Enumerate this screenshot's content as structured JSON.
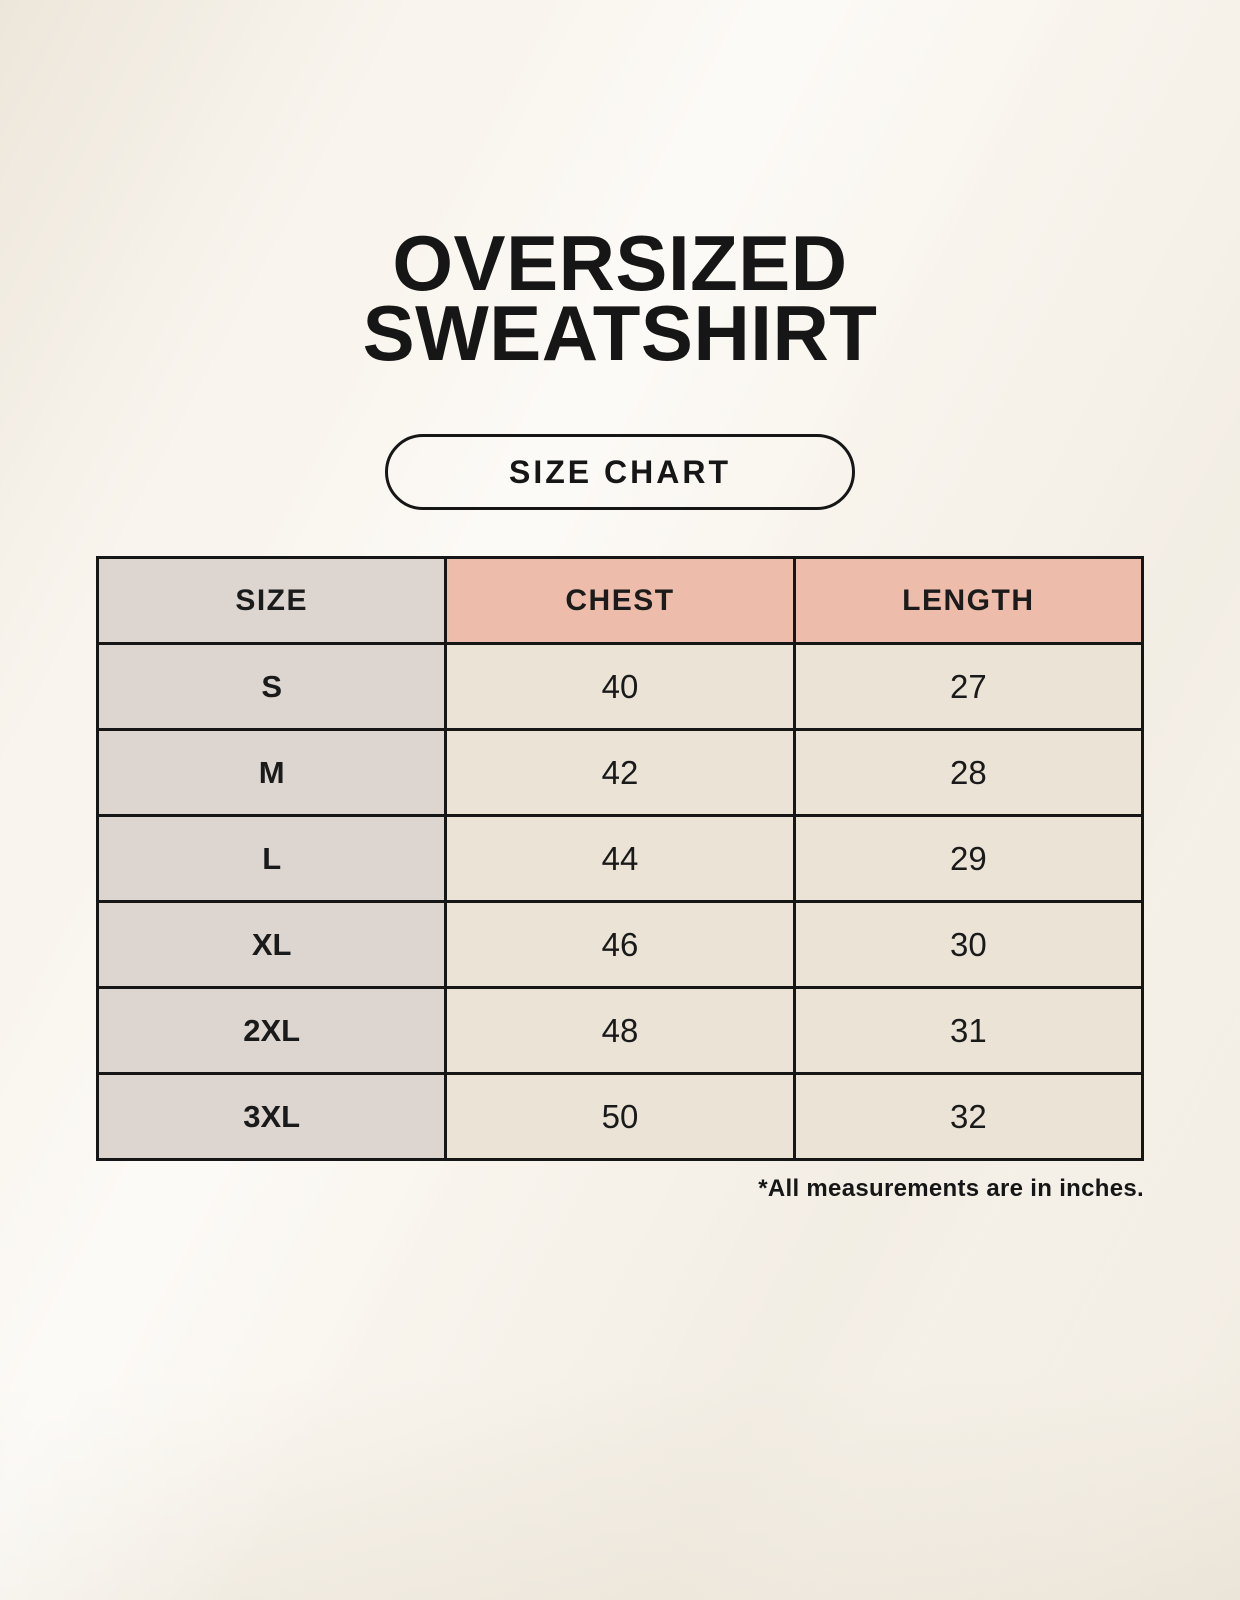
{
  "page": {
    "title_lines": [
      "OVERSIZED",
      "SWEATSHIRT"
    ],
    "badge_label": "SIZE CHART",
    "footnote": "*All measurements are in inches."
  },
  "chart_data": {
    "type": "table",
    "title": "OVERSIZED SWEATSHIRT — SIZE CHART",
    "columns": [
      "SIZE",
      "CHEST",
      "LENGTH"
    ],
    "rows": [
      [
        "S",
        "40",
        "27"
      ],
      [
        "M",
        "42",
        "28"
      ],
      [
        "L",
        "44",
        "29"
      ],
      [
        "XL",
        "46",
        "30"
      ],
      [
        "2XL",
        "48",
        "31"
      ],
      [
        "3XL",
        "50",
        "32"
      ]
    ],
    "units": "inches",
    "layout": {
      "background": "#f9f5ee",
      "label_cell_bg": "#dcd5d0",
      "measure_header_bg": "#edbcab",
      "value_cell_bg": "#ebe4d6",
      "border_color": "#161616",
      "text_color": "#1a1a1a"
    }
  }
}
